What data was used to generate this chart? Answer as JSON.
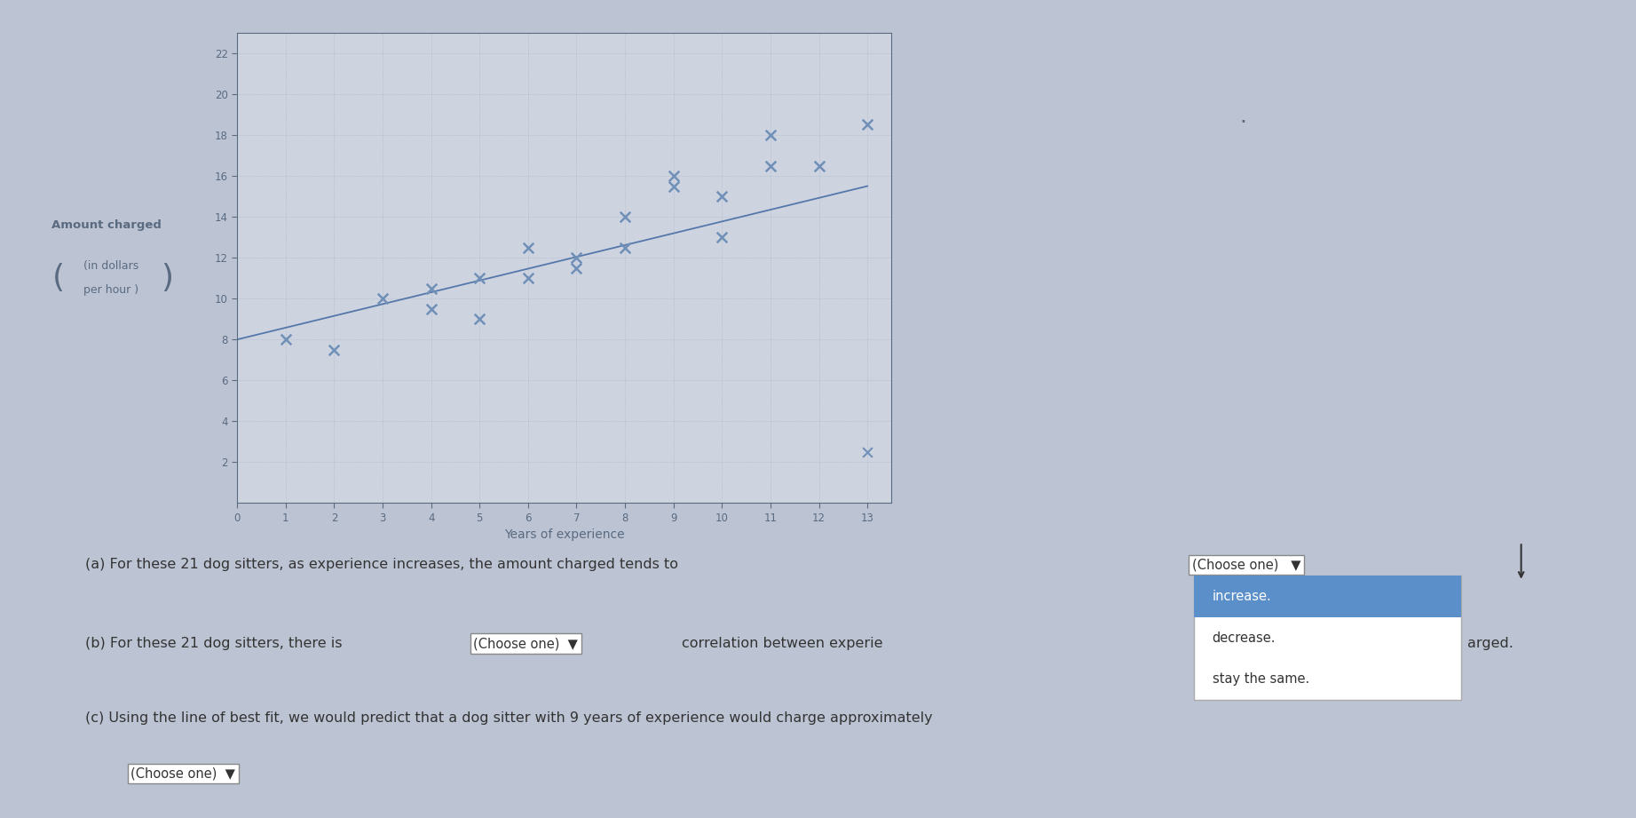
{
  "scatter_x": [
    1,
    2,
    3,
    4,
    5,
    4,
    5,
    6,
    7,
    6,
    8,
    7,
    8,
    9,
    10,
    9,
    11,
    10,
    11,
    12,
    13
  ],
  "scatter_y": [
    8,
    7.5,
    10,
    9.5,
    9,
    10.5,
    11,
    11,
    12,
    12.5,
    14,
    11.5,
    12.5,
    16,
    15,
    15.5,
    18,
    13,
    16.5,
    16.5,
    18.5
  ],
  "bestfit_x": [
    0,
    13
  ],
  "bestfit_y": [
    8.0,
    15.5
  ],
  "extra_x": 13,
  "extra_y": 2.5,
  "xlabel": "Years of experience",
  "ylabel_line1": "Amount charged",
  "ylabel_line2": "(in dollars",
  "ylabel_line3": "per hour )",
  "xlim": [
    0,
    13.5
  ],
  "ylim": [
    0,
    23
  ],
  "xticks": [
    0,
    1,
    2,
    3,
    4,
    5,
    6,
    7,
    8,
    9,
    10,
    11,
    12,
    13
  ],
  "yticks": [
    2,
    4,
    6,
    8,
    10,
    12,
    14,
    16,
    18,
    20,
    22
  ],
  "scatter_color": "#7090b8",
  "line_color": "#5577aa",
  "plot_bg": "#cdd4e0",
  "outer_bg": "#bcc4d4",
  "bottom_bg": "#f0f0f0",
  "text_color": "#5a6a80",
  "grid_color": "#aab2c4",
  "text_dark": "#333333",
  "dropdown_bg": "white",
  "highlight_color": "#5b8fc9",
  "text_a": "(a) For these 21 dog sitters, as experience increases, the amount charged tends to",
  "text_b_pre": "(b) For these 21 dog sitters, there is",
  "text_b_post": "correlation between experie",
  "text_b_end": "arged.",
  "text_c": "(c) Using the line of best fit, we would predict that a dog sitter with 9 years of experience would charge approximately",
  "text_c2": "(Choose one)",
  "dropdown_a": "(Choose one)",
  "dropdown_b": "(Choose one)",
  "dropdown_c": "(Choose one)",
  "menu_items": [
    "increase.",
    "decrease.",
    "stay the same."
  ]
}
